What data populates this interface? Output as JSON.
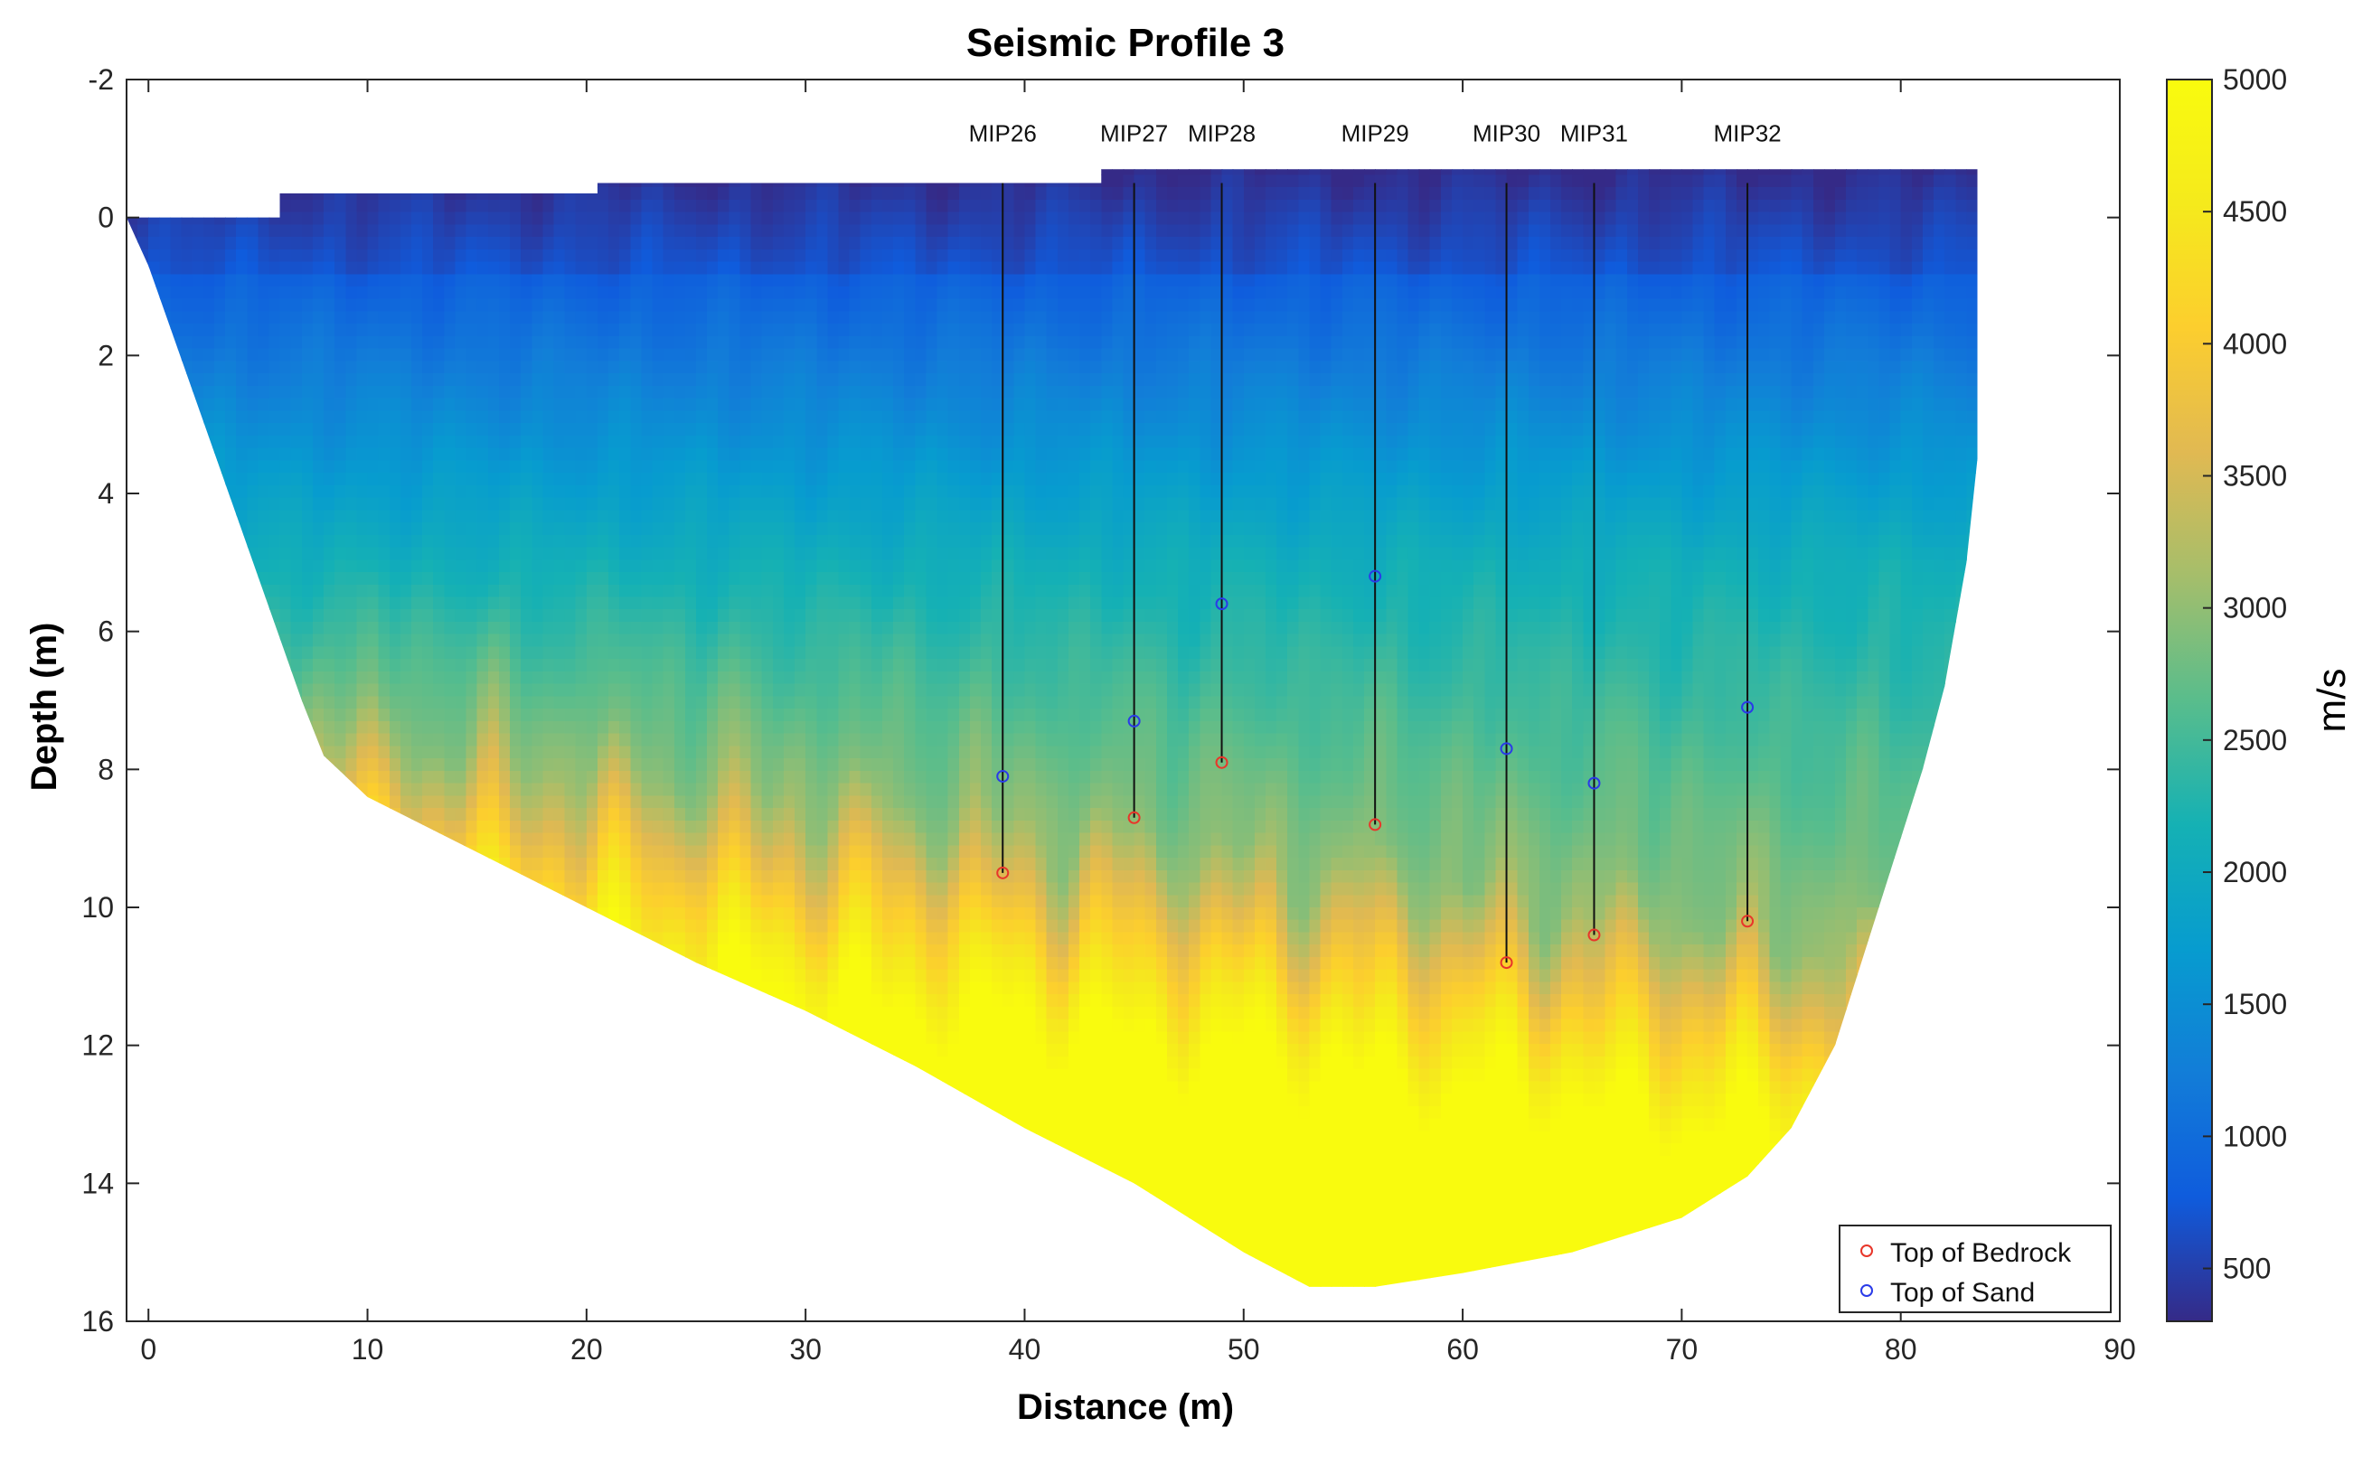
{
  "chart_data": {
    "type": "heatmap",
    "title": "Seismic Profile 3",
    "xlabel": "Distance (m)",
    "ylabel": "Depth (m)",
    "xlim": [
      -1,
      90
    ],
    "ylim": [
      -2,
      16
    ],
    "y_reversed": true,
    "xticks": [
      0,
      10,
      20,
      30,
      40,
      50,
      60,
      70,
      80,
      90
    ],
    "yticks": [
      -2,
      0,
      2,
      4,
      6,
      8,
      10,
      12,
      14,
      16
    ],
    "colorbar": {
      "label": "m/s",
      "range": [
        300,
        5000
      ],
      "ticks": [
        500,
        1000,
        1500,
        2000,
        2500,
        3000,
        3500,
        4000,
        4500,
        5000
      ],
      "colormap": "parula"
    },
    "velocity_model": {
      "top_surface": [
        [
          -1,
          0
        ],
        [
          6,
          0
        ],
        [
          6,
          -0.35
        ],
        [
          20.5,
          -0.35
        ],
        [
          20.5,
          -0.5
        ],
        [
          43.5,
          -0.5
        ],
        [
          43.5,
          -0.7
        ],
        [
          83.5,
          -0.7
        ]
      ],
      "bottom_outline": [
        [
          -1,
          0
        ],
        [
          0,
          0.7
        ],
        [
          1,
          1.6
        ],
        [
          2,
          2.5
        ],
        [
          3,
          3.4
        ],
        [
          4,
          4.3
        ],
        [
          5,
          5.2
        ],
        [
          6,
          6.1
        ],
        [
          7,
          7.0
        ],
        [
          8,
          7.8
        ],
        [
          10,
          8.4
        ],
        [
          15,
          9.2
        ],
        [
          20,
          10.0
        ],
        [
          25,
          10.8
        ],
        [
          30,
          11.5
        ],
        [
          35,
          12.3
        ],
        [
          40,
          13.2
        ],
        [
          45,
          14.0
        ],
        [
          50,
          15.0
        ],
        [
          53,
          15.5
        ],
        [
          56,
          15.5
        ],
        [
          60,
          15.3
        ],
        [
          65,
          15.0
        ],
        [
          70,
          14.5
        ],
        [
          73,
          13.9
        ],
        [
          75,
          13.2
        ],
        [
          77,
          12.0
        ],
        [
          78,
          11.0
        ],
        [
          79,
          10.0
        ],
        [
          80,
          9.0
        ],
        [
          81,
          8.0
        ],
        [
          82,
          6.8
        ],
        [
          83,
          5.0
        ],
        [
          83.5,
          3.5
        ],
        [
          83.5,
          -0.7
        ]
      ]
    },
    "boreholes": [
      {
        "name": "MIP26",
        "x": 39,
        "top_of_sand": 8.1,
        "top_of_bedrock": 9.5
      },
      {
        "name": "MIP27",
        "x": 45,
        "top_of_sand": 7.3,
        "top_of_bedrock": 8.7
      },
      {
        "name": "MIP28",
        "x": 49,
        "top_of_sand": 5.6,
        "top_of_bedrock": 7.9
      },
      {
        "name": "MIP29",
        "x": 56,
        "top_of_sand": 5.2,
        "top_of_bedrock": 8.8
      },
      {
        "name": "MIP30",
        "x": 62,
        "top_of_sand": 7.7,
        "top_of_bedrock": 10.8
      },
      {
        "name": "MIP31",
        "x": 66,
        "top_of_sand": 8.2,
        "top_of_bedrock": 10.4
      },
      {
        "name": "MIP32",
        "x": 73,
        "top_of_sand": 7.1,
        "top_of_bedrock": 10.2
      }
    ],
    "legend": {
      "position": "bottom-right",
      "entries": [
        {
          "label": "Top of Bedrock",
          "color": "#e8362a"
        },
        {
          "label": "Top of Sand",
          "color": "#2a3be8"
        }
      ]
    }
  }
}
